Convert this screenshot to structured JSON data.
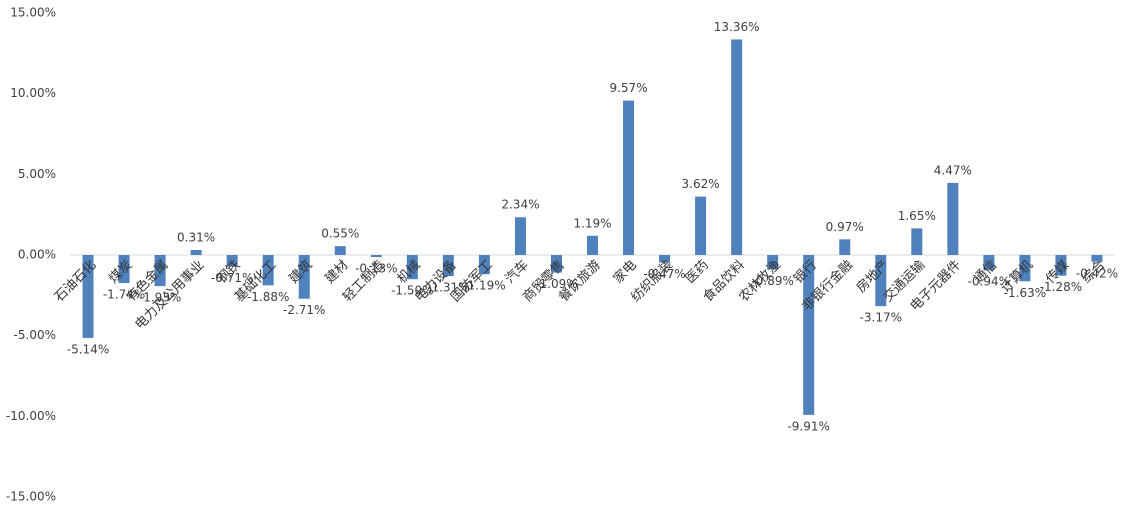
{
  "chart_data": {
    "type": "bar",
    "categories": [
      "石油石化",
      "煤炭",
      "有色金属",
      "电力及公用事业",
      "钢铁",
      "基础化工",
      "建筑",
      "建材",
      "轻工制造",
      "机械",
      "电力设备",
      "国防军工",
      "汽车",
      "商贸零售",
      "餐饮旅游",
      "家电",
      "纺织服装",
      "医药",
      "食品饮料",
      "农林牧渔",
      "银行",
      "非银行金融",
      "房地产",
      "交通运输",
      "电子元器件",
      "通信",
      "计算机",
      "传媒",
      "综合"
    ],
    "values": [
      -5.14,
      -1.74,
      -1.93,
      0.31,
      -0.71,
      -1.88,
      -2.71,
      0.55,
      -0.13,
      -1.5,
      -1.31,
      -1.19,
      2.34,
      -1.09,
      1.19,
      9.57,
      -0.47,
      3.62,
      13.36,
      -0.89,
      -9.91,
      0.97,
      -3.17,
      1.65,
      4.47,
      -0.94,
      -1.63,
      -1.28,
      -0.42
    ],
    "value_labels": [
      "-5.14%",
      "-1.74%",
      "-1.93%",
      "0.31%",
      "-0.71%",
      "-1.88%",
      "-2.71%",
      "0.55%",
      "-0.13%",
      "-1.50%",
      "-1.31%",
      "-1.19%",
      "2.34%",
      "-1.09%",
      "1.19%",
      "9.57%",
      "-0.47%",
      "3.62%",
      "13.36%",
      "-0.89%",
      "-9.91%",
      "0.97%",
      "-3.17%",
      "1.65%",
      "4.47%",
      "-0.94%",
      "-1.63%",
      "-1.28%",
      "-0.42%"
    ],
    "color": "#4f81bd",
    "ylim": [
      -15,
      15
    ],
    "yticks": [
      {
        "value": -15,
        "label": "-15.00%"
      },
      {
        "value": -10,
        "label": "-10.00%"
      },
      {
        "value": -5,
        "label": "-5.00%"
      },
      {
        "value": 0,
        "label": "0.00%"
      },
      {
        "value": 5,
        "label": "5.00%"
      },
      {
        "value": 10,
        "label": "10.00%"
      },
      {
        "value": 15,
        "label": "15.00%"
      }
    ]
  }
}
